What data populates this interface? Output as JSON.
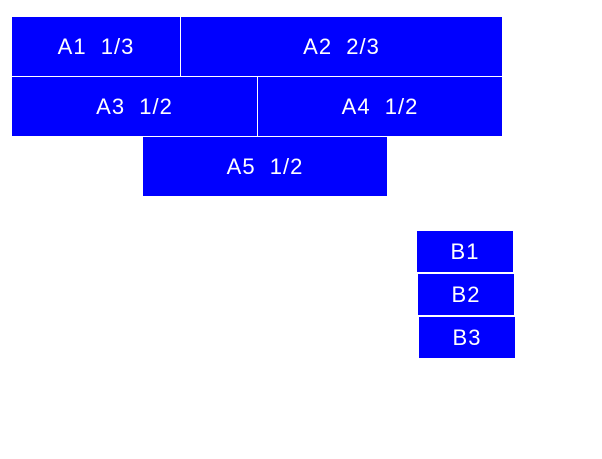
{
  "colors": {
    "box": "#0000ff",
    "text": "#ffffff"
  },
  "group_a": [
    {
      "label": "A1  1/3"
    },
    {
      "label": "A2  2/3"
    },
    {
      "label": "A3  1/2"
    },
    {
      "label": "A4  1/2"
    },
    {
      "label": "A5  1/2"
    }
  ],
  "group_b": [
    {
      "label": "B1"
    },
    {
      "label": "B2"
    },
    {
      "label": "B3"
    }
  ]
}
